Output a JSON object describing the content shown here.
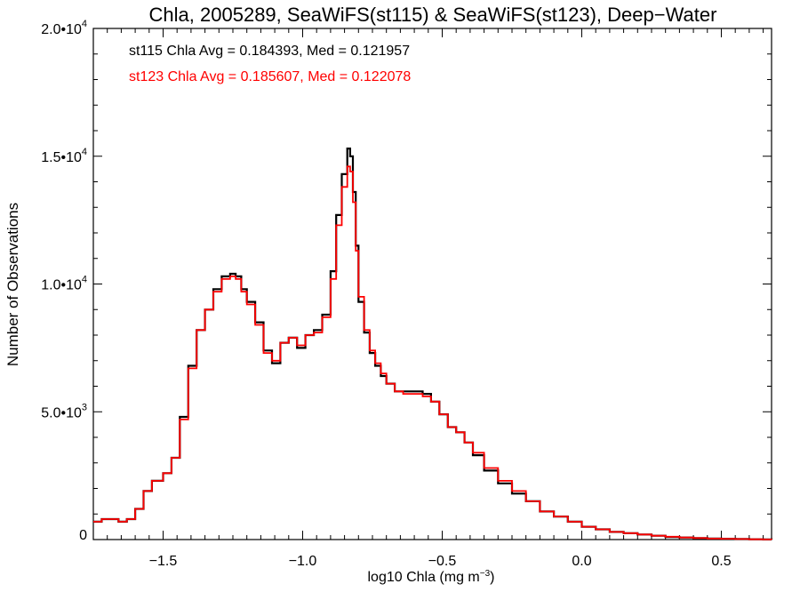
{
  "chart_data": {
    "type": "histogram-step",
    "title": "Chla, 2005289, SeaWiFS(st115) & SeaWiFS(st123), Deep−Water",
    "xlabel": "log10 Chla (mg m",
    "xlabel_exponent": "−3",
    "xlabel_close": ")",
    "ylabel": "Number of Observations",
    "xlim": [
      -1.75,
      0.68
    ],
    "ylim": [
      0,
      20000
    ],
    "x_ticks": [
      {
        "value": -1.5,
        "label": "−1.5"
      },
      {
        "value": -1.0,
        "label": "−1.0"
      },
      {
        "value": -0.5,
        "label": "−0.5"
      },
      {
        "value": 0.0,
        "label": "0.0"
      },
      {
        "value": 0.5,
        "label": "0.5"
      }
    ],
    "y_ticks": [
      {
        "value": 0,
        "mantissa": "0",
        "exponent": ""
      },
      {
        "value": 5000,
        "mantissa": "5.0•10",
        "exponent": "3"
      },
      {
        "value": 10000,
        "mantissa": "1.0•10",
        "exponent": "4"
      },
      {
        "value": 15000,
        "mantissa": "1.5•10",
        "exponent": "4"
      },
      {
        "value": 20000,
        "mantissa": "2.0•10",
        "exponent": "4"
      }
    ],
    "annotations": [
      {
        "text": "st115 Chla Avg = 0.184393, Med = 0.121957",
        "color": "#000000"
      },
      {
        "text": "st123 Chla Avg = 0.185607, Med = 0.122078",
        "color": "#ff0000"
      }
    ],
    "series": [
      {
        "color": "#000000",
        "x": [
          -1.75,
          -1.72,
          -1.69,
          -1.66,
          -1.63,
          -1.6,
          -1.57,
          -1.54,
          -1.5,
          -1.47,
          -1.44,
          -1.41,
          -1.38,
          -1.35,
          -1.32,
          -1.29,
          -1.26,
          -1.24,
          -1.22,
          -1.2,
          -1.17,
          -1.14,
          -1.11,
          -1.08,
          -1.05,
          -1.02,
          -0.99,
          -0.96,
          -0.93,
          -0.9,
          -0.88,
          -0.86,
          -0.84,
          -0.83,
          -0.82,
          -0.81,
          -0.8,
          -0.78,
          -0.76,
          -0.74,
          -0.72,
          -0.7,
          -0.67,
          -0.64,
          -0.6,
          -0.57,
          -0.54,
          -0.51,
          -0.48,
          -0.45,
          -0.42,
          -0.39,
          -0.35,
          -0.3,
          -0.25,
          -0.2,
          -0.15,
          -0.1,
          -0.05,
          0.0,
          0.05,
          0.1,
          0.15,
          0.2,
          0.25,
          0.3,
          0.35,
          0.4,
          0.45,
          0.5,
          0.55,
          0.6,
          0.65,
          0.68
        ],
        "y": [
          700,
          800,
          800,
          700,
          800,
          1200,
          1900,
          2300,
          2600,
          3200,
          4800,
          6800,
          8200,
          9000,
          9800,
          10300,
          10400,
          10300,
          9800,
          9300,
          8500,
          7400,
          6900,
          7700,
          7900,
          7500,
          8000,
          8200,
          8800,
          10500,
          12700,
          14300,
          15300,
          15000,
          13600,
          11500,
          9300,
          8100,
          7300,
          6800,
          6400,
          6100,
          5800,
          5800,
          5800,
          5700,
          5400,
          4900,
          4400,
          4200,
          3800,
          3300,
          2700,
          2200,
          1800,
          1500,
          1100,
          900,
          700,
          500,
          400,
          300,
          250,
          200,
          150,
          100,
          80,
          60,
          40,
          30,
          20,
          10,
          5,
          0
        ]
      },
      {
        "color": "#ff0000",
        "x": [
          -1.75,
          -1.72,
          -1.69,
          -1.66,
          -1.63,
          -1.6,
          -1.57,
          -1.54,
          -1.5,
          -1.47,
          -1.44,
          -1.41,
          -1.38,
          -1.35,
          -1.32,
          -1.29,
          -1.26,
          -1.24,
          -1.22,
          -1.2,
          -1.17,
          -1.14,
          -1.11,
          -1.08,
          -1.05,
          -1.02,
          -0.99,
          -0.96,
          -0.93,
          -0.9,
          -0.88,
          -0.86,
          -0.84,
          -0.83,
          -0.82,
          -0.81,
          -0.8,
          -0.78,
          -0.76,
          -0.74,
          -0.72,
          -0.7,
          -0.67,
          -0.64,
          -0.6,
          -0.57,
          -0.54,
          -0.51,
          -0.48,
          -0.45,
          -0.42,
          -0.39,
          -0.35,
          -0.3,
          -0.25,
          -0.2,
          -0.15,
          -0.1,
          -0.05,
          0.0,
          0.05,
          0.1,
          0.15,
          0.2,
          0.25,
          0.3,
          0.35,
          0.4,
          0.45,
          0.5,
          0.55,
          0.6,
          0.65,
          0.68
        ],
        "y": [
          700,
          800,
          800,
          700,
          800,
          1200,
          1900,
          2300,
          2600,
          3200,
          4700,
          6700,
          8200,
          9000,
          9700,
          10200,
          10300,
          10200,
          9700,
          9200,
          8400,
          7300,
          7000,
          7700,
          7900,
          7600,
          8000,
          8100,
          8700,
          10200,
          12300,
          13800,
          14600,
          14400,
          13200,
          11300,
          9500,
          8200,
          7400,
          6900,
          6500,
          6100,
          5800,
          5700,
          5700,
          5600,
          5400,
          4900,
          4400,
          4200,
          3800,
          3400,
          2800,
          2300,
          1900,
          1500,
          1100,
          900,
          700,
          500,
          400,
          300,
          250,
          200,
          150,
          110,
          80,
          60,
          40,
          30,
          20,
          10,
          5,
          0
        ]
      }
    ]
  }
}
